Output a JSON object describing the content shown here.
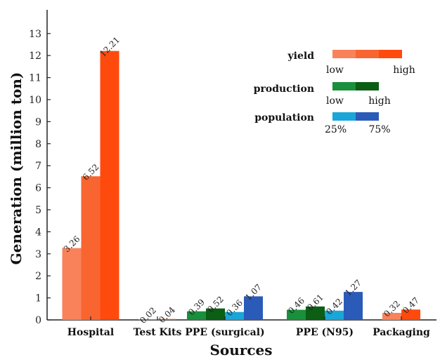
{
  "chart_data": {
    "type": "bar",
    "xlabel": "Sources",
    "ylabel": "Generation (million ton)",
    "ylim": [
      0,
      14
    ],
    "yticks": [
      0,
      1,
      2,
      3,
      4,
      5,
      6,
      7,
      8,
      9,
      10,
      11,
      12,
      13
    ],
    "grid": false,
    "legend_position": "top-right",
    "categories": [
      "Hospital",
      "Test Kits",
      "PPE (surgical)",
      "PPE (N95)",
      "Packaging"
    ],
    "groups": [
      {
        "category": "Hospital",
        "bars": [
          {
            "value": 3.26,
            "label": "3.26",
            "color": "#F9825A"
          },
          {
            "value": 6.52,
            "label": "6.52",
            "color": "#F96530"
          },
          {
            "value": 12.21,
            "label": "12.21",
            "color": "#FF4A0E"
          }
        ]
      },
      {
        "category": "Test Kits",
        "bars": [
          {
            "value": 0.02,
            "label": "0.02",
            "color": "#F96530"
          },
          {
            "value": 0.04,
            "label": "0.04",
            "color": "#FF4A0E"
          }
        ]
      },
      {
        "category": "PPE (surgical)",
        "bars": [
          {
            "value": 0.39,
            "label": "0.39",
            "color": "#1A8F3C"
          },
          {
            "value": 0.52,
            "label": "0.52",
            "color": "#0B5E14"
          },
          {
            "value": 0.36,
            "label": "0.36",
            "color": "#1AA6D8"
          },
          {
            "value": 1.07,
            "label": "1.07",
            "color": "#2B5BB8"
          }
        ]
      },
      {
        "category": "PPE (N95)",
        "bars": [
          {
            "value": 0.46,
            "label": "0.46",
            "color": "#1A8F3C"
          },
          {
            "value": 0.61,
            "label": "0.61",
            "color": "#0B5E14"
          },
          {
            "value": 0.42,
            "label": "0.42",
            "color": "#1AA6D8"
          },
          {
            "value": 1.27,
            "label": "1.27",
            "color": "#2B5BB8"
          }
        ]
      },
      {
        "category": "Packaging",
        "bars": [
          {
            "value": 0.32,
            "label": "0.32",
            "color": "#F9825A"
          },
          {
            "value": 0.47,
            "label": "0.47",
            "color": "#FF4A0E"
          }
        ]
      }
    ],
    "legend": [
      {
        "title": "yield",
        "low": "low",
        "high": "high",
        "colors": [
          "#F9825A",
          "#F96530",
          "#FF4A0E"
        ]
      },
      {
        "title": "production",
        "low": "low",
        "high": "high",
        "colors": [
          "#1A8F3C",
          "#0B5E14"
        ]
      },
      {
        "title": "population",
        "low": "25%",
        "high": "75%",
        "colors": [
          "#1AA6D8",
          "#2B5BB8"
        ]
      }
    ]
  }
}
